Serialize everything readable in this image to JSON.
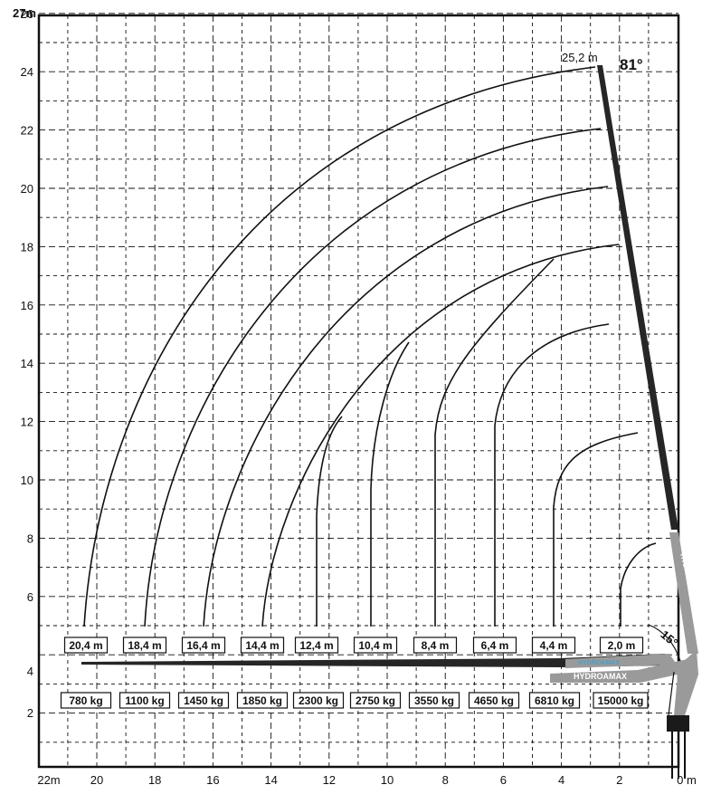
{
  "chart_data": {
    "type": "diagram",
    "x_axis": {
      "ticks": [
        "22m",
        "20",
        "18",
        "16",
        "14",
        "12",
        "10",
        "8",
        "6",
        "4",
        "2",
        "0 m"
      ]
    },
    "y_axis": {
      "ticks": [
        "27m",
        "26",
        "24",
        "22",
        "20",
        "18",
        "16",
        "14",
        "12",
        "10",
        "8",
        "6",
        "4",
        "2"
      ]
    },
    "outreach_labels": [
      "20,4 m",
      "18,4 m",
      "16,4 m",
      "14,4 m",
      "12,4 m",
      "10,4 m",
      "8,4 m",
      "6,4 m",
      "4,4 m",
      "2,0 m"
    ],
    "load_labels": [
      "780 kg",
      "1100 kg",
      "1450 kg",
      "1850 kg",
      "2300 kg",
      "2750 kg",
      "3550 kg",
      "4650 kg",
      "6810 kg",
      "15000 kg"
    ],
    "max_height_label": "25,2 m",
    "max_angle_label": "81°",
    "min_angle_label": "15°",
    "brand_text": "HYDROAMAX",
    "colors": {
      "grid": "#111111",
      "curve": "#111111",
      "boom_dark": "#262626",
      "boom_grey": "#9a9a9a",
      "brand_accent": "#4a9ec4"
    }
  }
}
